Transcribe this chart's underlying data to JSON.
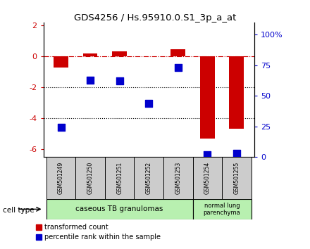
{
  "title": "GDS4256 / Hs.95910.0.S1_3p_a_at",
  "samples": [
    "GSM501249",
    "GSM501250",
    "GSM501251",
    "GSM501252",
    "GSM501253",
    "GSM501254",
    "GSM501255"
  ],
  "red_bars": [
    -0.7,
    0.2,
    0.35,
    0.0,
    0.45,
    -5.3,
    -4.7
  ],
  "blue_percentiles": [
    24,
    63,
    62,
    44,
    73,
    2,
    3
  ],
  "ylim_left": [
    -6.5,
    2.2
  ],
  "ylim_right": [
    0,
    110
  ],
  "right_ticks": [
    0,
    25,
    50,
    75,
    100
  ],
  "right_ticklabels": [
    "0",
    "25",
    "50",
    "75",
    "100%"
  ],
  "left_ticks": [
    -6,
    -4,
    -2,
    0,
    2
  ],
  "dotted_lines": [
    -4,
    -2
  ],
  "dashdot_line": 0.0,
  "red_color": "#cc0000",
  "blue_color": "#0000cc",
  "bar_width": 0.5,
  "dot_size": 50,
  "sample_box_color": "#cccccc",
  "cell_group1_color": "#b8f0b0",
  "cell_group2_color": "#b8f0b0",
  "legend_items": [
    "transformed count",
    "percentile rank within the sample"
  ]
}
